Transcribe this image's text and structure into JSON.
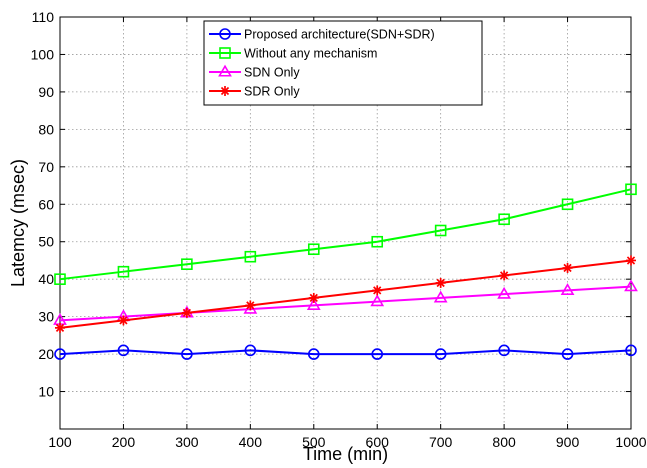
{
  "chart_data": {
    "type": "line",
    "xlabel": "Time (min)",
    "ylabel": "Latemcy (msec)",
    "x": [
      100,
      200,
      300,
      400,
      500,
      600,
      700,
      800,
      900,
      1000
    ],
    "xlim": [
      100,
      1000
    ],
    "ylim": [
      0,
      110
    ],
    "xticks": [
      "100",
      "200",
      "300",
      "400",
      "500",
      "600",
      "700",
      "800",
      "900",
      "1000"
    ],
    "yticks": [
      "10",
      "20",
      "30",
      "40",
      "50",
      "60",
      "70",
      "80",
      "90",
      "100",
      "110"
    ],
    "grid": true,
    "legend_position": "top-center",
    "series": [
      {
        "name": "Proposed architecture(SDN+SDR)",
        "color": "#0000ff",
        "marker": "circle",
        "values": [
          20,
          21,
          20,
          21,
          20,
          20,
          20,
          21,
          20,
          21
        ]
      },
      {
        "name": "Without any mechanism",
        "color": "#00ff00",
        "marker": "square",
        "values": [
          40,
          42,
          44,
          46,
          48,
          50,
          53,
          56,
          60,
          64
        ]
      },
      {
        "name": "SDN Only",
        "color": "#ff00ff",
        "marker": "triangle",
        "values": [
          29,
          30,
          31,
          32,
          33,
          34,
          35,
          36,
          37,
          38
        ]
      },
      {
        "name": "SDR Only",
        "color": "#ff0000",
        "marker": "star",
        "values": [
          27,
          29,
          31,
          33,
          35,
          37,
          39,
          41,
          43,
          45
        ]
      }
    ]
  }
}
